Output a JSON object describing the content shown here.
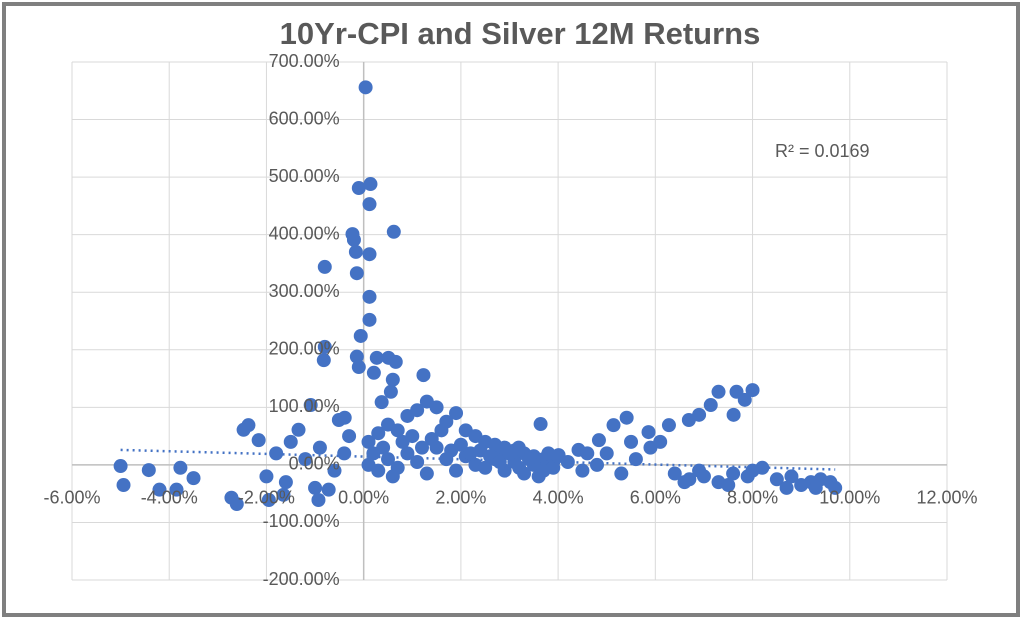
{
  "chart_data": {
    "type": "scatter",
    "title": "10Yr-CPI and Silver 12M Returns",
    "annotation": "R² = 0.0169",
    "color": "#4472c4",
    "x": [
      0.04,
      -0.1,
      0.14,
      0.12,
      -0.23,
      -0.2,
      -0.16,
      0.12,
      0.62,
      -0.8,
      -0.14,
      0.12,
      0.12,
      -0.06,
      -0.8,
      -0.82,
      -0.14,
      -0.1,
      0.27,
      0.51,
      0.66,
      0.21,
      0.6,
      1.23,
      0.56,
      0.37,
      7.3,
      7.67,
      8.0,
      7.84,
      7.61,
      7.14,
      6.9,
      6.69,
      6.28,
      5.86,
      5.41,
      5.14,
      4.84,
      4.42,
      4.01,
      3.64,
      3.19,
      2.78,
      -5.0,
      -4.94,
      -4.42,
      -4.2,
      -3.77,
      -3.5,
      -3.85,
      -2.72,
      -2.61,
      -2.47,
      -2.37,
      -2.16,
      -1.95,
      -1.65,
      -1.09,
      -1.34,
      -0.93,
      -0.72,
      -0.51,
      -0.39,
      0.1,
      0.3,
      0.5,
      0.7,
      0.9,
      1.1,
      1.3,
      1.5,
      1.7,
      1.9,
      2.1,
      2.3,
      2.5,
      2.7,
      2.9,
      3.1,
      3.3,
      3.5,
      3.7,
      3.9,
      0.1,
      0.3,
      0.5,
      0.7,
      0.9,
      1.1,
      1.3,
      1.5,
      1.7,
      1.9,
      2.1,
      2.3,
      2.5,
      2.7,
      2.9,
      3.1,
      3.3,
      3.5,
      3.7,
      3.9,
      0.2,
      0.4,
      0.6,
      0.8,
      1.0,
      1.2,
      1.4,
      1.6,
      1.8,
      2.0,
      2.2,
      2.4,
      2.6,
      2.8,
      3.0,
      3.2,
      3.4,
      3.6,
      3.8,
      4.0,
      -1.8,
      -1.5,
      -1.2,
      -0.9,
      -0.6,
      -0.3,
      -2.0,
      -1.6,
      -1.0,
      -0.4,
      4.2,
      4.5,
      4.8,
      5.0,
      5.3,
      5.6,
      5.9,
      6.1,
      4.6,
      5.5,
      6.4,
      6.7,
      7.0,
      7.3,
      7.6,
      7.9,
      8.2,
      8.5,
      8.8,
      9.0,
      9.2,
      9.4,
      9.6,
      9.7,
      8.0,
      6.9,
      7.5,
      8.7,
      9.3,
      6.6
    ],
    "values": [
      656,
      481,
      488,
      453,
      401,
      391,
      370,
      366,
      405,
      344,
      333,
      292,
      252,
      224,
      205,
      182,
      188,
      170,
      186,
      186,
      179,
      160,
      148,
      156,
      127,
      109,
      127,
      127,
      130,
      113,
      87,
      104,
      87,
      78,
      69,
      57,
      82,
      69,
      43,
      26,
      17,
      71,
      30,
      17,
      -2,
      -35,
      -9,
      -43,
      -5,
      -23,
      -43,
      -57,
      -68,
      61,
      69,
      43,
      -61,
      -52,
      104,
      61,
      -61,
      -43,
      78,
      82,
      40,
      55,
      70,
      60,
      85,
      95,
      110,
      100,
      75,
      90,
      60,
      50,
      40,
      35,
      30,
      25,
      20,
      15,
      10,
      5,
      0,
      -10,
      10,
      -5,
      20,
      5,
      -15,
      30,
      10,
      -10,
      15,
      0,
      -5,
      10,
      -10,
      5,
      -15,
      0,
      -10,
      -5,
      20,
      30,
      -20,
      40,
      50,
      30,
      45,
      60,
      25,
      35,
      20,
      25,
      15,
      5,
      20,
      -5,
      10,
      -20,
      20,
      15,
      20,
      40,
      10,
      30,
      -10,
      50,
      -20,
      -30,
      -40,
      20,
      5,
      -10,
      0,
      20,
      -15,
      10,
      30,
      40,
      20,
      40,
      -15,
      -25,
      -20,
      -30,
      -15,
      -20,
      -5,
      -25,
      -20,
      -35,
      -30,
      -25,
      -30,
      -40,
      -10,
      -10,
      -35,
      -40,
      -40,
      -30
    ],
    "trendline": {
      "x": [
        -5,
        9.7
      ],
      "values": [
        26,
        -8
      ]
    },
    "xlim": [
      -6,
      12
    ],
    "xticks": [
      {
        "value": -6,
        "label": "-6.00%"
      },
      {
        "value": -4,
        "label": "-4.00%"
      },
      {
        "value": -2,
        "label": "-2.00%"
      },
      {
        "value": 0,
        "label": "0.00%"
      },
      {
        "value": 2,
        "label": "2.00%"
      },
      {
        "value": 4,
        "label": "4.00%"
      },
      {
        "value": 6,
        "label": "6.00%"
      },
      {
        "value": 8,
        "label": "8.00%"
      },
      {
        "value": 10,
        "label": "10.00%"
      },
      {
        "value": 12,
        "label": "12.00%"
      }
    ],
    "ylim": [
      -200,
      700
    ],
    "yticks": [
      {
        "value": -200,
        "label": "-200.00%"
      },
      {
        "value": -100,
        "label": "-100.00%"
      },
      {
        "value": 0,
        "label": "0.00%"
      },
      {
        "value": 100,
        "label": "100.00%"
      },
      {
        "value": 200,
        "label": "200.00%"
      },
      {
        "value": 300,
        "label": "300.00%"
      },
      {
        "value": 400,
        "label": "400.00%"
      },
      {
        "value": 500,
        "label": "500.00%"
      },
      {
        "value": 600,
        "label": "600.00%"
      },
      {
        "value": 700,
        "label": "700.00%"
      }
    ],
    "grid": true
  }
}
